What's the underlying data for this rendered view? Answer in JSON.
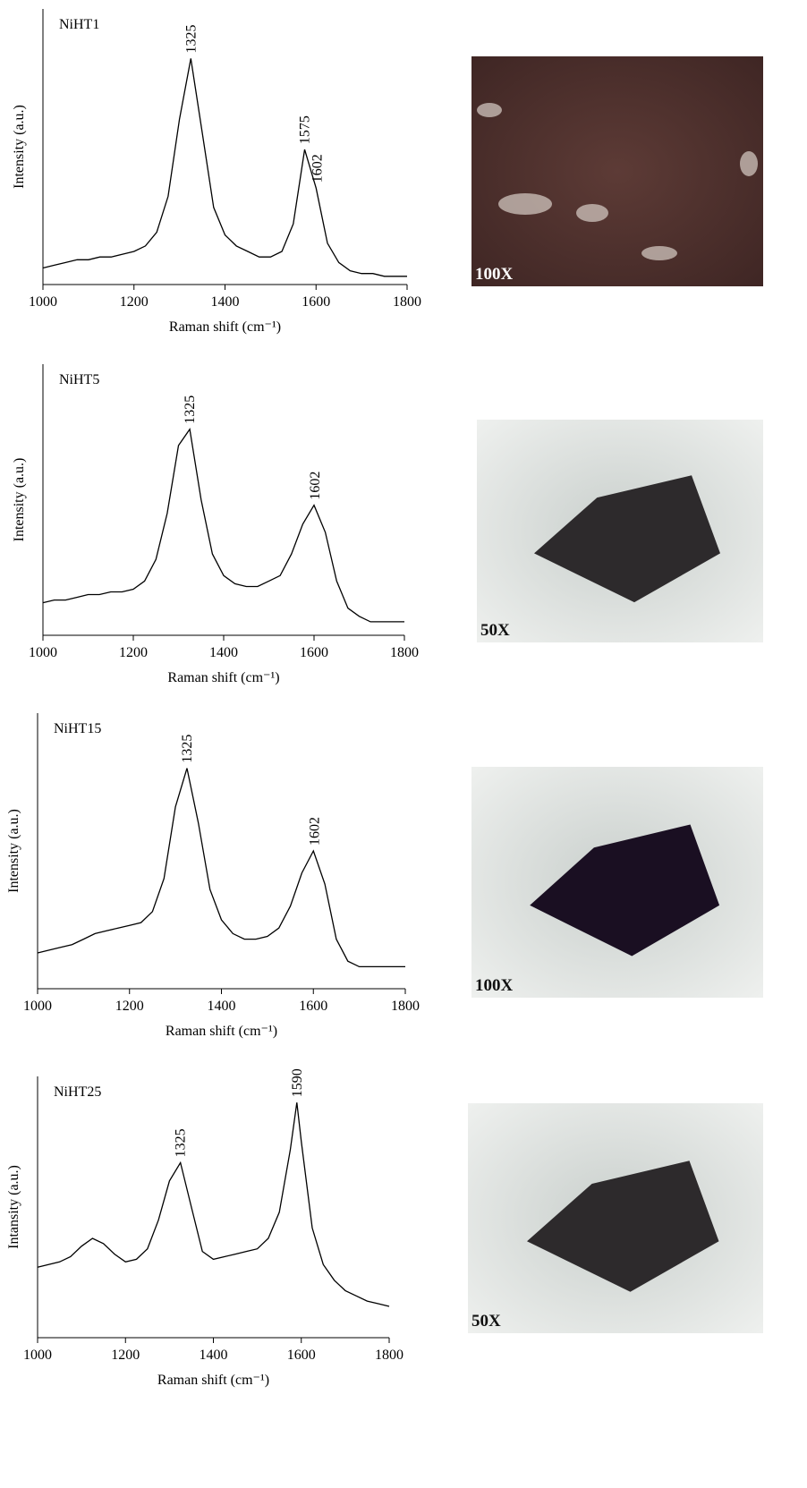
{
  "chart_data": [
    {
      "type": "line",
      "sample": "NiHT1",
      "ylabel": "Intensity (a.u.)",
      "xlabel": "Raman shift (cm⁻¹)",
      "color": "#000000",
      "x": [
        1000,
        1025,
        1050,
        1075,
        1100,
        1125,
        1150,
        1175,
        1200,
        1225,
        1250,
        1275,
        1300,
        1325,
        1350,
        1375,
        1400,
        1425,
        1450,
        1475,
        1500,
        1525,
        1550,
        1575,
        1600,
        1625,
        1650,
        1675,
        1700,
        1725,
        1750,
        1775,
        1800
      ],
      "values": [
        6,
        7,
        8,
        9,
        9,
        10,
        10,
        11,
        12,
        14,
        19,
        32,
        60,
        82,
        55,
        28,
        18,
        14,
        12,
        10,
        10,
        12,
        22,
        49,
        35,
        15,
        8,
        5,
        4,
        4,
        3,
        3,
        3
      ],
      "peaks": [
        1325,
        1575,
        1602
      ],
      "xlim": [
        1000,
        1800
      ],
      "xticks": [
        1000,
        1200,
        1400,
        1600,
        1800
      ],
      "ylim": [
        0,
        100
      ],
      "micrograph_label": "100X"
    },
    {
      "type": "line",
      "sample": "NiHT5",
      "ylabel": "Intensity (a.u.)",
      "xlabel": "Raman shift (cm⁻¹)",
      "color": "#000000",
      "x": [
        1000,
        1025,
        1050,
        1075,
        1100,
        1125,
        1150,
        1175,
        1200,
        1225,
        1250,
        1275,
        1300,
        1325,
        1350,
        1375,
        1400,
        1425,
        1450,
        1475,
        1500,
        1525,
        1550,
        1575,
        1600,
        1625,
        1650,
        1675,
        1700,
        1725,
        1750,
        1775,
        1800
      ],
      "values": [
        12,
        13,
        13,
        14,
        15,
        15,
        16,
        16,
        17,
        20,
        28,
        45,
        70,
        76,
        50,
        30,
        22,
        19,
        18,
        18,
        20,
        22,
        30,
        41,
        48,
        38,
        20,
        10,
        7,
        5,
        5,
        5,
        5
      ],
      "peaks": [
        1325,
        1602
      ],
      "xlim": [
        1000,
        1800
      ],
      "xticks": [
        1000,
        1200,
        1400,
        1600,
        1800
      ],
      "ylim": [
        0,
        100
      ],
      "micrograph_label": "50X"
    },
    {
      "type": "line",
      "sample": "NiHT15",
      "ylabel": "Intensity (a.u.)",
      "xlabel": "Raman shift (cm⁻¹)",
      "color": "#000000",
      "x": [
        1000,
        1025,
        1050,
        1075,
        1100,
        1125,
        1150,
        1175,
        1200,
        1225,
        1250,
        1275,
        1300,
        1325,
        1350,
        1375,
        1400,
        1425,
        1450,
        1475,
        1500,
        1525,
        1550,
        1575,
        1600,
        1625,
        1650,
        1675,
        1700,
        1725,
        1750,
        1775,
        1800
      ],
      "values": [
        13,
        14,
        15,
        16,
        18,
        20,
        21,
        22,
        23,
        24,
        28,
        40,
        66,
        80,
        60,
        36,
        25,
        20,
        18,
        18,
        19,
        22,
        30,
        42,
        50,
        38,
        18,
        10,
        8,
        8,
        8,
        8,
        8
      ],
      "peaks": [
        1325,
        1602
      ],
      "xlim": [
        1000,
        1800
      ],
      "xticks": [
        1000,
        1200,
        1400,
        1600,
        1800
      ],
      "ylim": [
        0,
        100
      ],
      "micrograph_label": "100X"
    },
    {
      "type": "line",
      "sample": "NiHT25",
      "ylabel": "Intansity (a.u.)",
      "xlabel": "Raman shift (cm⁻¹)",
      "color": "#000000",
      "x": [
        1000,
        1025,
        1050,
        1075,
        1100,
        1125,
        1150,
        1175,
        1200,
        1225,
        1250,
        1275,
        1300,
        1325,
        1350,
        1375,
        1400,
        1425,
        1450,
        1475,
        1500,
        1525,
        1550,
        1575,
        1590,
        1600,
        1625,
        1650,
        1675,
        1700,
        1725,
        1750,
        1775,
        1800
      ],
      "values": [
        27,
        28,
        29,
        31,
        35,
        38,
        36,
        32,
        29,
        30,
        34,
        45,
        60,
        67,
        50,
        33,
        30,
        31,
        32,
        33,
        34,
        38,
        48,
        72,
        90,
        75,
        42,
        28,
        22,
        18,
        16,
        14,
        13,
        12
      ],
      "peaks": [
        1325,
        1590
      ],
      "xlim": [
        1000,
        1800
      ],
      "xticks": [
        1000,
        1200,
        1400,
        1600,
        1800
      ],
      "ylim": [
        0,
        100
      ],
      "micrograph_label": "50X"
    }
  ]
}
